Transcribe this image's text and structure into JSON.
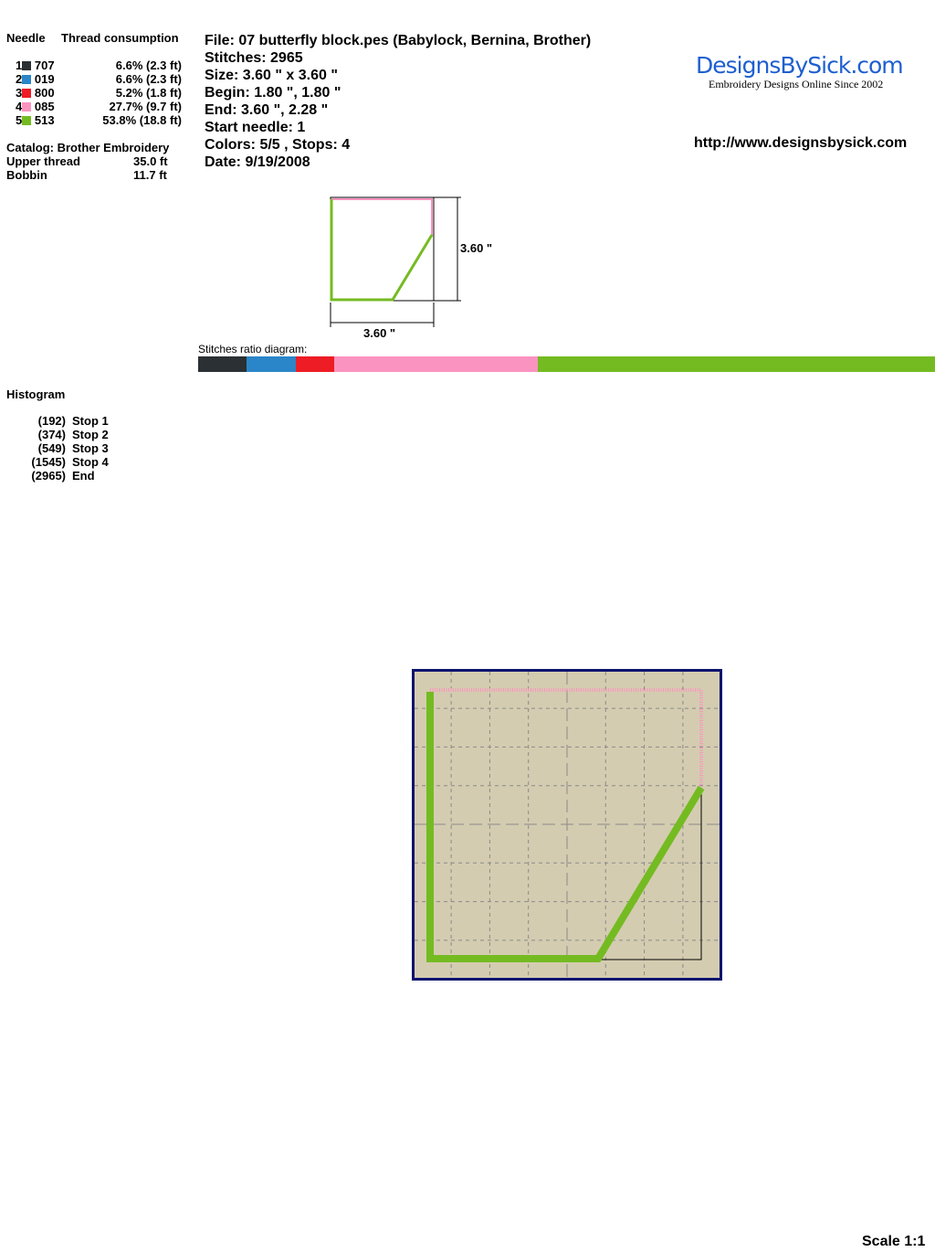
{
  "needle_header": "Needle",
  "thread_header": "Thread consumption",
  "threads": [
    {
      "needle": "1",
      "code": "707",
      "color": "#2a3033",
      "consumption": "6.6% (2.3 ft)",
      "percent": 6.6
    },
    {
      "needle": "2",
      "code": "019",
      "color": "#2a86c8",
      "consumption": "6.6% (2.3 ft)",
      "percent": 6.6
    },
    {
      "needle": "3",
      "code": "800",
      "color": "#ee1c24",
      "consumption": "5.2% (1.8 ft)",
      "percent": 5.2
    },
    {
      "needle": "4",
      "code": "085",
      "color": "#fb93c0",
      "consumption": "27.7% (9.7 ft)",
      "percent": 27.7
    },
    {
      "needle": "5",
      "code": "513",
      "color": "#74bb22",
      "consumption": "53.8% (18.8 ft)",
      "percent": 53.8
    }
  ],
  "catalog": "Catalog: Brother Embroidery",
  "upper_label": "Upper thread",
  "upper_value": "35.0 ft",
  "bobbin_label": "Bobbin",
  "bobbin_value": "11.7 ft",
  "info": [
    "File: 07 butterfly block.pes  (Babylock, Bernina, Brother)",
    "Stitches: 2965",
    "Size: 3.60 \" x 3.60 \"",
    "Begin: 1.80 \", 1.80 \"",
    "End: 3.60 \", 2.28 \"",
    "Start needle: 1",
    "Colors: 5/5 , Stops: 4",
    "Date: 9/19/2008"
  ],
  "logo": {
    "name": "DesignsBySick.com",
    "tagline": "Embroidery Designs Online Since 2002"
  },
  "url": "http://www.designsbysick.com",
  "dim_height": "3.60 \"",
  "dim_width": "3.60 \"",
  "ratio_label": "Stitches ratio diagram:",
  "histogram_title": "Histogram",
  "histogram": [
    {
      "count": "(192)",
      "label": "Stop 1"
    },
    {
      "count": "(374)",
      "label": "Stop 2"
    },
    {
      "count": "(549)",
      "label": "Stop 3"
    },
    {
      "count": "(1545)",
      "label": "Stop 4"
    },
    {
      "count": "(2965)",
      "label": "End"
    }
  ],
  "scale": "Scale 1:1",
  "colors": {
    "hoop_bg": "#d4ccb0",
    "hoop_border": "#0a1470"
  }
}
